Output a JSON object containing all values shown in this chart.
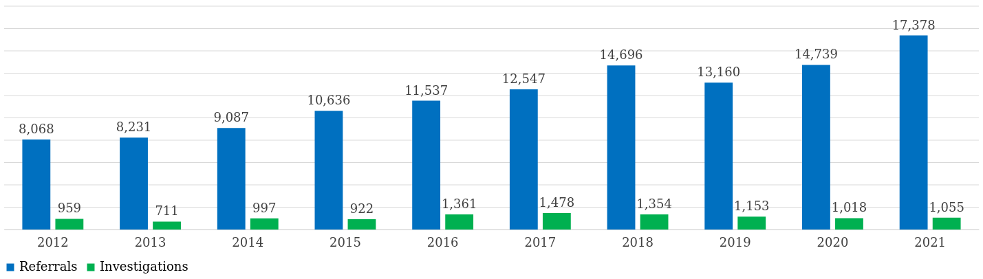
{
  "chart_data": {
    "type": "bar",
    "categories": [
      "2012",
      "2013",
      "2014",
      "2015",
      "2016",
      "2017",
      "2018",
      "2019",
      "2020",
      "2021"
    ],
    "series": [
      {
        "name": "Referrals",
        "color": "#0070c0",
        "values": [
          8068,
          8231,
          9087,
          10636,
          11537,
          12547,
          14696,
          13160,
          14739,
          17378
        ],
        "value_labels": [
          "8,068",
          "8,231",
          "9,087",
          "10,636",
          "11,537",
          "12,547",
          "14,696",
          "13,160",
          "14,739",
          "17,378"
        ]
      },
      {
        "name": "Investigations",
        "color": "#00b050",
        "values": [
          959,
          711,
          997,
          922,
          1361,
          1478,
          1354,
          1153,
          1018,
          1055
        ],
        "value_labels": [
          "959",
          "711",
          "997",
          "922",
          "1,361",
          "1,478",
          "1,354",
          "1,153",
          "1,018",
          "1,055"
        ]
      }
    ],
    "ylim": [
      0,
      20000
    ],
    "yticks": [
      {
        "value": 0,
        "label": null
      },
      {
        "value": 2000,
        "label": null
      },
      {
        "value": 4000,
        "label": null
      },
      {
        "value": 6000,
        "label": null
      },
      {
        "value": 8000,
        "label": null
      },
      {
        "value": 10000,
        "label": null
      },
      {
        "value": 12000,
        "label": null
      },
      {
        "value": 14000,
        "label": null
      },
      {
        "value": 16000,
        "label": null
      },
      {
        "value": 18000,
        "label": null
      },
      {
        "value": 20000,
        "label": null
      }
    ],
    "tick_labels": "x",
    "grid": "y",
    "legend": "bottom"
  }
}
